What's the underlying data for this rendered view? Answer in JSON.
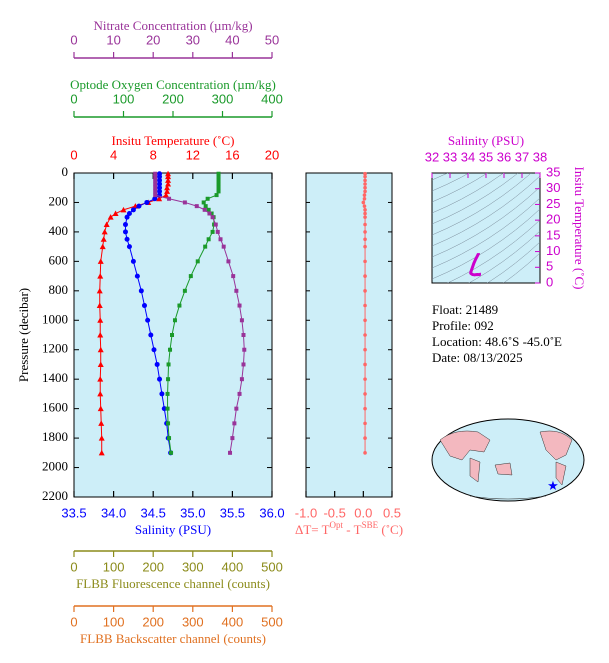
{
  "chart_data": {
    "type": "line",
    "pressure_label": "Pressure (decibar)",
    "ylim": [
      0,
      2200
    ],
    "yticks": [
      0,
      200,
      400,
      600,
      800,
      1000,
      1200,
      1400,
      1600,
      1800,
      2000,
      2200
    ],
    "pressure": [
      5,
      25,
      50,
      75,
      100,
      125,
      150,
      175,
      200,
      225,
      250,
      275,
      300,
      350,
      400,
      450,
      500,
      600,
      700,
      800,
      900,
      1000,
      1100,
      1200,
      1300,
      1400,
      1500,
      1600,
      1700,
      1800,
      1900
    ],
    "axes": {
      "nitrate": {
        "label": "Nitrate Concentration (µm/kg)",
        "lim": [
          0,
          50
        ],
        "ticks": [
          0,
          10,
          20,
          30,
          40,
          50
        ],
        "color": "#993399"
      },
      "oxygen": {
        "label": "Optode Oxygen Concentration (µm/kg)",
        "lim": [
          0,
          400
        ],
        "ticks": [
          0,
          100,
          200,
          300,
          400
        ],
        "color": "#1a9a2a"
      },
      "temperature": {
        "label": "Insitu Temperature (˚C)",
        "lim": [
          0,
          20
        ],
        "ticks": [
          0,
          4,
          8,
          12,
          16,
          20
        ],
        "color": "#ff0000"
      },
      "salinity": {
        "label": "Salinity (PSU)",
        "lim": [
          33.5,
          36.0
        ],
        "ticks": [
          33.5,
          {
            "value": 34.0,
            "label": "34.0"
          },
          34.5,
          {
            "value": 35.0,
            "label": "35.0"
          },
          35.5,
          {
            "value": 36.0,
            "label": "36.0"
          }
        ],
        "color": "#0000ff"
      },
      "fluorescence": {
        "label": "FLBB Fluorescence channel (counts)",
        "lim": [
          0,
          500
        ],
        "ticks": [
          0,
          100,
          200,
          300,
          400,
          500
        ],
        "color": "#8b8b1a"
      },
      "backscatter": {
        "label": "FLBB Backscatter channel (counts)",
        "lim": [
          0,
          500
        ],
        "ticks": [
          0,
          100,
          200,
          300,
          400,
          500
        ],
        "color": "#e07020"
      },
      "dt": {
        "label": [
          "ΔT= T",
          "Opt",
          " - T",
          "SBE",
          " (˚C)"
        ],
        "lim": [
          -1.0,
          0.5
        ],
        "ticks": [
          {
            "value": -1.0,
            "label": "-1.0"
          },
          -0.5,
          {
            "value": 0.0,
            "label": "0.0"
          },
          0.5
        ],
        "color": "#ff6666"
      }
    },
    "series": [
      {
        "axis": "temperature",
        "color": "#ff0000",
        "values": [
          9.5,
          9.5,
          9.5,
          9.5,
          9.4,
          9.4,
          9.3,
          8.6,
          7.5,
          6.2,
          5.0,
          4.2,
          3.7,
          3.3,
          3.1,
          3.0,
          2.9,
          2.7,
          2.65,
          2.6,
          2.6,
          2.65,
          2.65,
          2.7,
          2.7,
          2.65,
          2.65,
          2.7,
          2.75,
          2.8,
          2.8
        ]
      },
      {
        "axis": "salinity",
        "color": "#0000ff",
        "values": [
          34.58,
          34.58,
          34.58,
          34.58,
          34.58,
          34.58,
          34.58,
          34.52,
          34.42,
          34.32,
          34.25,
          34.2,
          34.17,
          34.15,
          34.15,
          34.17,
          34.2,
          34.25,
          34.3,
          34.35,
          34.39,
          34.43,
          34.47,
          34.51,
          34.55,
          34.58,
          34.61,
          34.64,
          34.67,
          34.69,
          34.72
        ]
      },
      {
        "axis": "oxygen",
        "color": "#1a9a2a",
        "values": [
          292,
          292,
          292,
          292,
          292,
          292,
          288,
          270,
          262,
          266,
          272,
          278,
          282,
          283,
          280,
          272,
          265,
          250,
          236,
          224,
          213,
          204,
          198,
          194,
          191,
          190,
          189,
          189,
          190,
          192,
          196
        ]
      },
      {
        "axis": "nitrate",
        "color": "#993399",
        "values": [
          20.5,
          20.5,
          20.5,
          20.5,
          20.5,
          20.5,
          20.5,
          24,
          28,
          31,
          33,
          34.2,
          35,
          35.8,
          36.3,
          37,
          37.8,
          39,
          40.2,
          41,
          41.8,
          42.4,
          42.8,
          43,
          42.8,
          42.4,
          41.8,
          41,
          40.5,
          40,
          39.4
        ]
      },
      {
        "axis": "dt",
        "color": "#ff6666",
        "values": [
          0.03,
          0.03,
          0.03,
          0.03,
          0.03,
          0.03,
          0.02,
          0.02,
          0.0,
          0.02,
          0.03,
          0.03,
          0.03,
          0.03,
          0.03,
          0.03,
          0.03,
          0.03,
          0.03,
          0.03,
          0.03,
          0.03,
          0.03,
          0.03,
          0.03,
          0.03,
          0.03,
          0.03,
          0.03,
          0.03,
          0.03
        ]
      }
    ],
    "ts_inset": {
      "salinity_label": "Salinity (PSU)",
      "xlim": [
        32,
        38
      ],
      "xticks": [
        32,
        33,
        34,
        35,
        36,
        37,
        38
      ],
      "temperature_label": "Insitu Temperature (˚C)",
      "ylim": [
        0,
        35
      ],
      "yticks": [
        0,
        5,
        10,
        15,
        20,
        25,
        30,
        35
      ],
      "color": "#cc00cc"
    },
    "info": [
      "Float:  21489",
      "Profile:  092",
      "Location:  48.6˚S  -45.0˚E",
      "Date:  08/13/2025"
    ]
  }
}
